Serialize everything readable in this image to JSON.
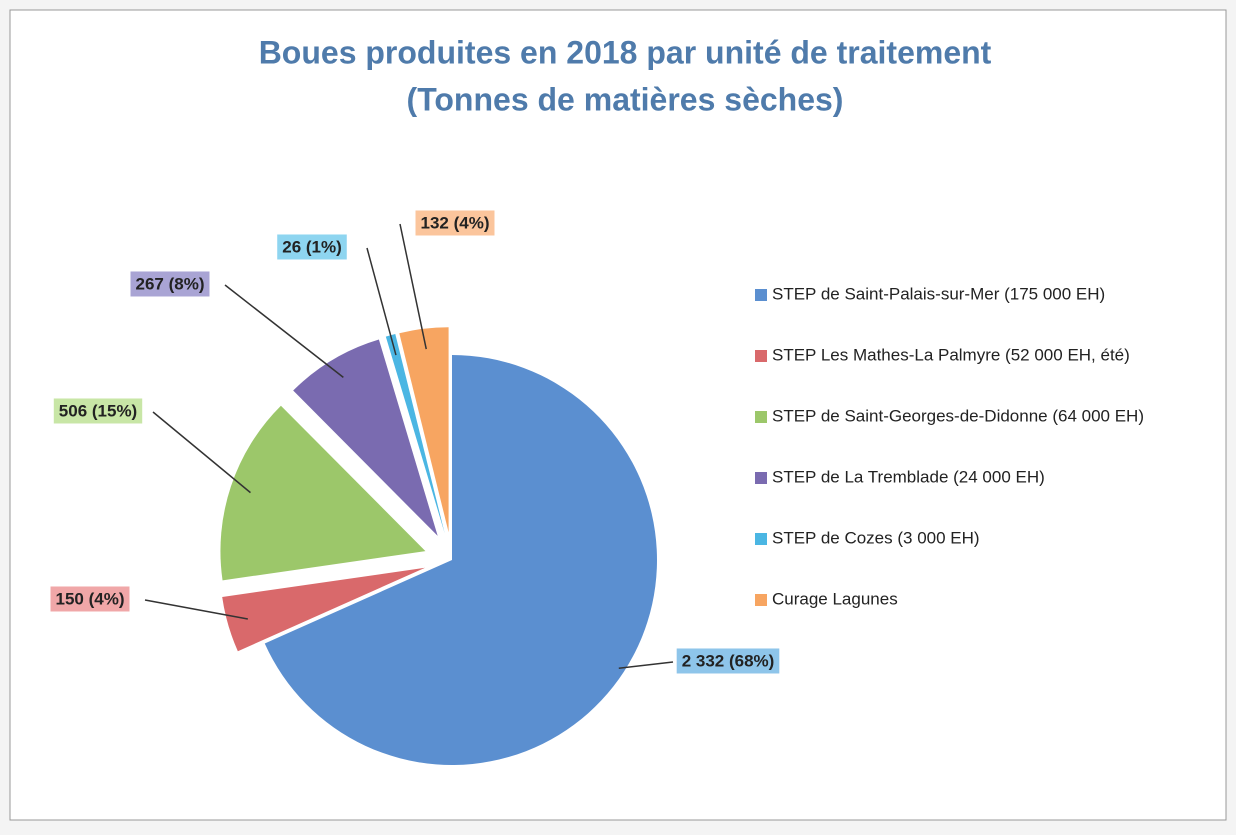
{
  "chart_data": {
    "type": "pie",
    "title": "Boues produites en 2018 par unité de traitement",
    "subtitle": "(Tonnes de matières sèches)",
    "categories": [
      "STEP de Saint-Palais-sur-Mer (175 000 EH)",
      "STEP Les Mathes-La Palmyre (52 000 EH, été)",
      "STEP de Saint-Georges-de-Didonne (64 000 EH)",
      "STEP de La Tremblade (24 000 EH)",
      "STEP de Cozes (3 000 EH)",
      "Curage Lagunes"
    ],
    "values": [
      2332,
      150,
      506,
      267,
      26,
      132
    ],
    "value_labels": [
      "2 332 (68%)",
      "150 (4%)",
      "506 (15%)",
      "267 (8%)",
      "26 (1%)",
      "132 (4%)"
    ],
    "colors": [
      "#5b8fd0",
      "#d9696b",
      "#9cc76a",
      "#7a6bb0",
      "#4bb6e3",
      "#f7a561"
    ],
    "legend": "right"
  }
}
